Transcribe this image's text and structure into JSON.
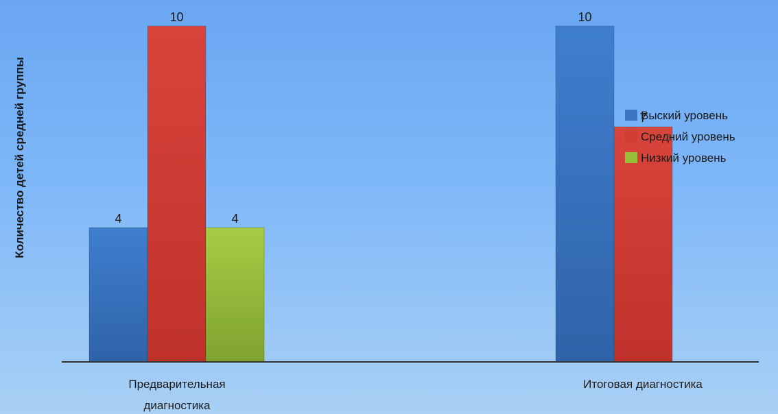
{
  "chart_data": {
    "type": "bar",
    "ylabel": "Количество детей средней группы",
    "categories": [
      "Предварительная диагностика",
      "Итоговая диагностика"
    ],
    "ylim": [
      0,
      10
    ],
    "grid": false,
    "legend_position": "right",
    "series": [
      {
        "name": "Выский уровень",
        "values": [
          4,
          10
        ],
        "color": "#3a76c2"
      },
      {
        "name": "Средний уровень",
        "values": [
          10,
          7
        ],
        "color": "#d23d34"
      },
      {
        "name": "Низкий уровень",
        "values": [
          4,
          null
        ],
        "color": "#96c03a"
      }
    ]
  }
}
